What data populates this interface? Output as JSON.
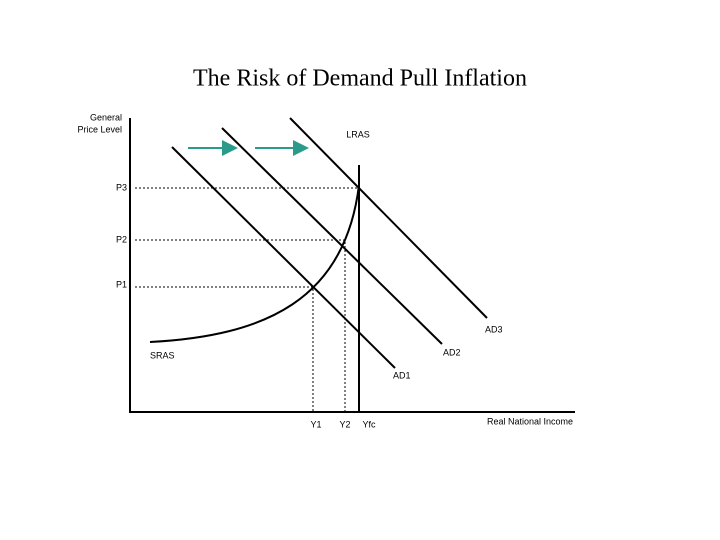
{
  "title": "The Risk of Demand Pull Inflation",
  "y_axis_label": [
    "General",
    "Price Level"
  ],
  "x_axis_label": "Real National Income",
  "curves": {
    "lras": "LRAS",
    "sras": "SRAS",
    "ad1": "AD1",
    "ad2": "AD2",
    "ad3": "AD3"
  },
  "price_levels": [
    "P1",
    "P2",
    "P3"
  ],
  "output_levels": [
    "Y1",
    "Y2",
    "Yfc"
  ]
}
